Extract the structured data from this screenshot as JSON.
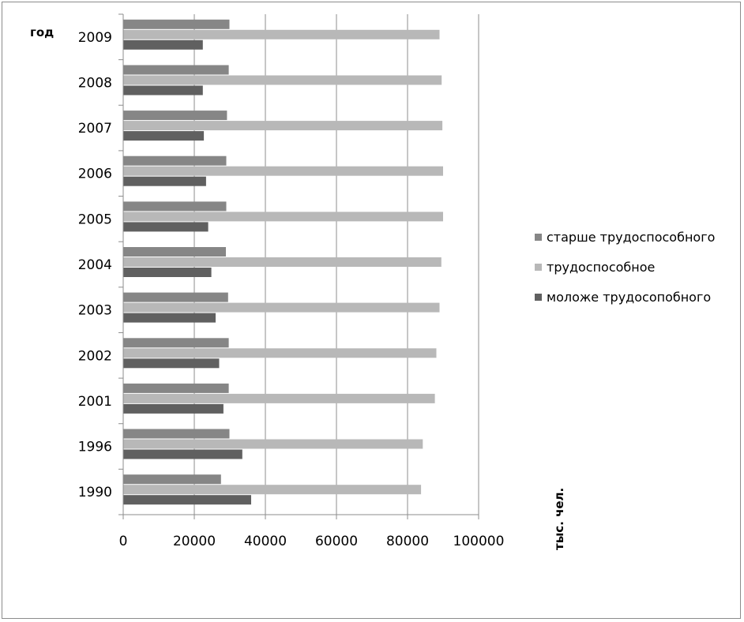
{
  "chart_data": {
    "type": "bar",
    "orientation": "horizontal",
    "categories": [
      "1990",
      "1996",
      "2001",
      "2002",
      "2003",
      "2004",
      "2005",
      "2006",
      "2007",
      "2008",
      "2009"
    ],
    "series": [
      {
        "name": "моложе трудосопобного",
        "color": "#606060",
        "values": [
          36000,
          33500,
          28200,
          27000,
          26000,
          24800,
          23900,
          23300,
          22700,
          22400,
          22400
        ]
      },
      {
        "name": "трудоспособное",
        "color": "#b8b8b8",
        "values": [
          83800,
          84300,
          87700,
          88100,
          89000,
          89500,
          90000,
          90000,
          89800,
          89600,
          89000
        ]
      },
      {
        "name": "старше трудоспособного",
        "color": "#868686",
        "values": [
          27500,
          29900,
          29700,
          29700,
          29500,
          28900,
          29000,
          29000,
          29200,
          29700,
          29900
        ]
      }
    ],
    "xticks": [
      "0",
      "20000",
      "40000",
      "60000",
      "80000",
      "100000"
    ],
    "xlim": [
      0,
      100000
    ],
    "xlabel": "тыс. чел.",
    "ylabel": "год",
    "grid": "vertical",
    "legend": "right"
  }
}
